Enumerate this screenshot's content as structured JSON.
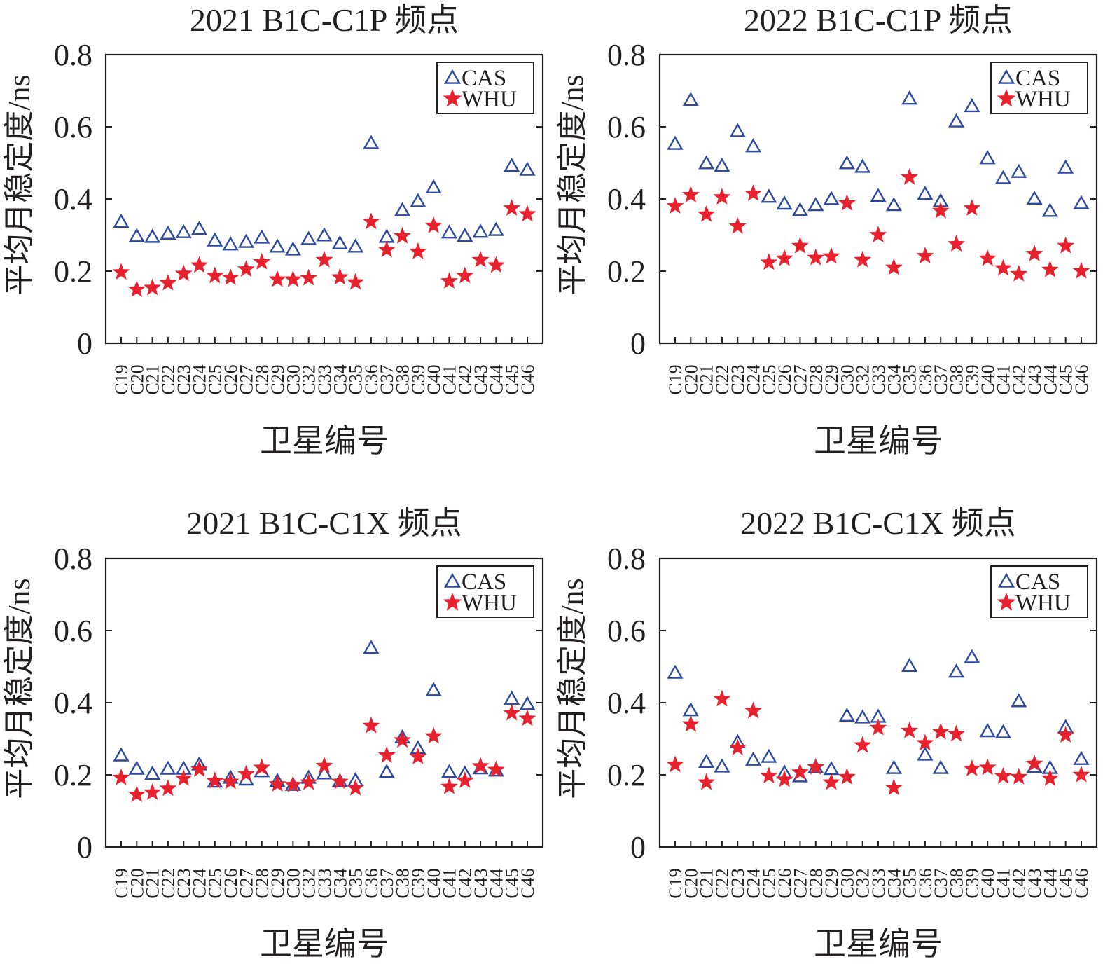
{
  "chart_data": [
    {
      "type": "scatter",
      "title": "2021 B1C-C1P 频点",
      "xlabel": "卫星编号",
      "ylabel": "平均月稳定度/ns",
      "ylim": [
        0,
        0.8
      ],
      "yticks": [
        "0",
        "0.2",
        "0.4",
        "0.6",
        "0.8"
      ],
      "grid": false,
      "legend_position": "top-right",
      "categories": [
        "C19",
        "C20",
        "C21",
        "C22",
        "C23",
        "C24",
        "C25",
        "C26",
        "C27",
        "C28",
        "C29",
        "C30",
        "C32",
        "C33",
        "C34",
        "C35",
        "C36",
        "C37",
        "C38",
        "C39",
        "C40",
        "C41",
        "C42",
        "C43",
        "C44",
        "C45",
        "C46"
      ],
      "series": [
        {
          "name": "CAS",
          "marker": "triangle",
          "color": "#2E4A9E",
          "values": [
            0.335,
            0.295,
            0.293,
            0.302,
            0.306,
            0.315,
            0.283,
            0.272,
            0.279,
            0.291,
            0.266,
            0.258,
            0.287,
            0.297,
            0.275,
            0.266,
            0.553,
            0.293,
            0.367,
            0.392,
            0.43,
            0.305,
            0.296,
            0.307,
            0.312,
            0.49,
            0.479
          ]
        },
        {
          "name": "WHU",
          "marker": "star",
          "color": "#E8212E",
          "values": [
            0.197,
            0.149,
            0.154,
            0.167,
            0.193,
            0.216,
            0.187,
            0.182,
            0.205,
            0.225,
            0.177,
            0.177,
            0.181,
            0.231,
            0.183,
            0.169,
            0.337,
            0.259,
            0.297,
            0.254,
            0.326,
            0.172,
            0.187,
            0.231,
            0.216,
            0.374,
            0.358
          ]
        }
      ]
    },
    {
      "type": "scatter",
      "title": "2022 B1C-C1P 频点",
      "xlabel": "卫星编号",
      "ylabel": "平均月稳定度/ns",
      "ylim": [
        0,
        0.8
      ],
      "yticks": [
        "0",
        "0.2",
        "0.4",
        "0.6",
        "0.8"
      ],
      "grid": false,
      "legend_position": "top-right",
      "categories": [
        "C19",
        "C20",
        "C21",
        "C22",
        "C23",
        "C24",
        "C25",
        "C26",
        "C27",
        "C28",
        "C29",
        "C30",
        "C32",
        "C33",
        "C34",
        "C35",
        "C36",
        "C37",
        "C38",
        "C39",
        "C40",
        "C41",
        "C42",
        "C43",
        "C44",
        "C45",
        "C46"
      ],
      "series": [
        {
          "name": "CAS",
          "marker": "triangle",
          "color": "#2E4A9E",
          "values": [
            0.551,
            0.672,
            0.497,
            0.49,
            0.586,
            0.544,
            0.404,
            0.385,
            0.367,
            0.381,
            0.398,
            0.497,
            0.487,
            0.406,
            0.381,
            0.676,
            0.412,
            0.392,
            0.613,
            0.655,
            0.511,
            0.456,
            0.473,
            0.399,
            0.365,
            0.485,
            0.386
          ]
        },
        {
          "name": "WHU",
          "marker": "star",
          "color": "#E8212E",
          "values": [
            0.38,
            0.411,
            0.357,
            0.405,
            0.324,
            0.415,
            0.224,
            0.235,
            0.27,
            0.237,
            0.241,
            0.388,
            0.231,
            0.3,
            0.21,
            0.46,
            0.242,
            0.367,
            0.275,
            0.374,
            0.235,
            0.208,
            0.192,
            0.248,
            0.204,
            0.27,
            0.2
          ]
        }
      ]
    },
    {
      "type": "scatter",
      "title": "2021 B1C-C1X 频点",
      "xlabel": "卫星编号",
      "ylabel": "平均月稳定度/ns",
      "ylim": [
        0,
        0.8
      ],
      "yticks": [
        "0",
        "0.2",
        "0.4",
        "0.6",
        "0.8"
      ],
      "grid": false,
      "legend_position": "top-right",
      "categories": [
        "C19",
        "C20",
        "C21",
        "C22",
        "C23",
        "C24",
        "C25",
        "C26",
        "C27",
        "C28",
        "C29",
        "C30",
        "C32",
        "C33",
        "C34",
        "C35",
        "C36",
        "C37",
        "C38",
        "C39",
        "C40",
        "C41",
        "C42",
        "C43",
        "C44",
        "C45",
        "C46"
      ],
      "series": [
        {
          "name": "CAS",
          "marker": "triangle",
          "color": "#2E4A9E",
          "values": [
            0.252,
            0.215,
            0.201,
            0.215,
            0.215,
            0.227,
            0.179,
            0.19,
            0.185,
            0.208,
            0.181,
            0.17,
            0.19,
            0.202,
            0.18,
            0.183,
            0.55,
            0.206,
            0.302,
            0.272,
            0.433,
            0.206,
            0.202,
            0.216,
            0.21,
            0.409,
            0.394
          ]
        },
        {
          "name": "WHU",
          "marker": "star",
          "color": "#E8212E",
          "values": [
            0.192,
            0.145,
            0.151,
            0.162,
            0.19,
            0.215,
            0.183,
            0.181,
            0.202,
            0.22,
            0.174,
            0.172,
            0.179,
            0.225,
            0.181,
            0.163,
            0.336,
            0.254,
            0.296,
            0.25,
            0.307,
            0.167,
            0.184,
            0.224,
            0.214,
            0.371,
            0.356
          ]
        }
      ]
    },
    {
      "type": "scatter",
      "title": "2022 B1C-C1X 频点",
      "xlabel": "卫星编号",
      "ylabel": "平均月稳定度/ns",
      "ylim": [
        0,
        0.8
      ],
      "yticks": [
        "0",
        "0.2",
        "0.4",
        "0.6",
        "0.8"
      ],
      "grid": false,
      "legend_position": "top-right",
      "categories": [
        "C19",
        "C20",
        "C21",
        "C22",
        "C23",
        "C24",
        "C25",
        "C26",
        "C27",
        "C28",
        "C29",
        "C30",
        "C32",
        "C33",
        "C34",
        "C35",
        "C36",
        "C37",
        "C38",
        "C39",
        "C40",
        "C41",
        "C42",
        "C43",
        "C44",
        "C45",
        "C46"
      ],
      "series": [
        {
          "name": "CAS",
          "marker": "triangle",
          "color": "#2E4A9E",
          "values": [
            0.481,
            0.377,
            0.234,
            0.221,
            0.289,
            0.24,
            0.248,
            0.204,
            0.194,
            0.219,
            0.214,
            0.362,
            0.357,
            0.359,
            0.217,
            0.5,
            0.254,
            0.217,
            0.484,
            0.524,
            0.319,
            0.316,
            0.402,
            0.22,
            0.217,
            0.33,
            0.242
          ]
        },
        {
          "name": "WHU",
          "marker": "star",
          "color": "#E8212E",
          "values": [
            0.228,
            0.34,
            0.179,
            0.41,
            0.275,
            0.377,
            0.197,
            0.187,
            0.207,
            0.221,
            0.179,
            0.194,
            0.282,
            0.33,
            0.164,
            0.322,
            0.288,
            0.319,
            0.313,
            0.217,
            0.22,
            0.196,
            0.194,
            0.231,
            0.19,
            0.31,
            0.2
          ]
        }
      ]
    }
  ]
}
